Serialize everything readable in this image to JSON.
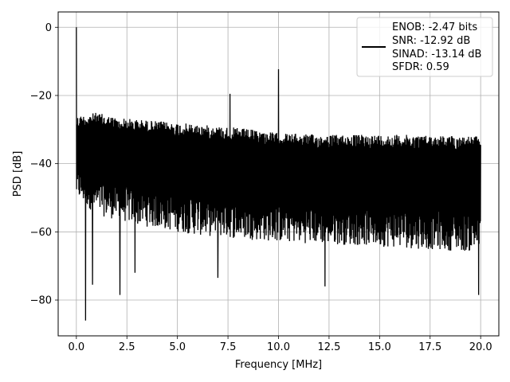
{
  "chart_data": {
    "type": "line",
    "title": "",
    "xlabel": "Frequency [MHz]",
    "ylabel": "PSD [dB]",
    "xlim": [
      -0.9,
      20.9
    ],
    "ylim": [
      -90.5,
      4.5
    ],
    "xticks": [
      0.0,
      2.5,
      5.0,
      7.5,
      10.0,
      12.5,
      15.0,
      17.5,
      20.0
    ],
    "xtick_labels": [
      "0.0",
      "2.5",
      "5.0",
      "7.5",
      "10.0",
      "12.5",
      "15.0",
      "17.5",
      "20.0"
    ],
    "yticks": [
      0,
      -20,
      -40,
      -60,
      -80
    ],
    "ytick_labels": [
      "0",
      "−20",
      "−40",
      "−60",
      "−80"
    ],
    "grid": true,
    "legend_position": "top-right",
    "legend_lines": [
      "ENOB: -2.47 bits",
      "SNR: -12.92 dB",
      "SINAD: -13.14 dB",
      "SFDR: 0.59"
    ],
    "series_color": "#000000",
    "series": [
      {
        "x_range": [
          0.0,
          20.0
        ],
        "noise_floor": [
          [
            0,
            -26
          ],
          [
            1,
            -25
          ],
          [
            2,
            -26.5
          ],
          [
            4,
            -27.5
          ],
          [
            6,
            -28.5
          ],
          [
            8,
            -29.5
          ],
          [
            10,
            -31
          ],
          [
            12,
            -31.5
          ],
          [
            16,
            -31.5
          ],
          [
            20,
            -32
          ]
        ],
        "noise_bottom": [
          [
            0,
            -50
          ],
          [
            1,
            -55
          ],
          [
            3,
            -58
          ],
          [
            6,
            -61
          ],
          [
            10,
            -63
          ],
          [
            14,
            -64
          ],
          [
            20,
            -66
          ]
        ],
        "peaks": [
          {
            "x": 0.0,
            "y": 0.0
          },
          {
            "x": 7.6,
            "y": -19.5
          },
          {
            "x": 10.0,
            "y": -12.3
          }
        ],
        "dips": [
          {
            "x": 0.45,
            "y": -86
          },
          {
            "x": 0.8,
            "y": -75.5
          },
          {
            "x": 2.15,
            "y": -78.5
          },
          {
            "x": 2.9,
            "y": -72
          },
          {
            "x": 7.0,
            "y": -73.5
          },
          {
            "x": 12.3,
            "y": -76
          },
          {
            "x": 19.9,
            "y": -78.5
          }
        ]
      }
    ]
  }
}
